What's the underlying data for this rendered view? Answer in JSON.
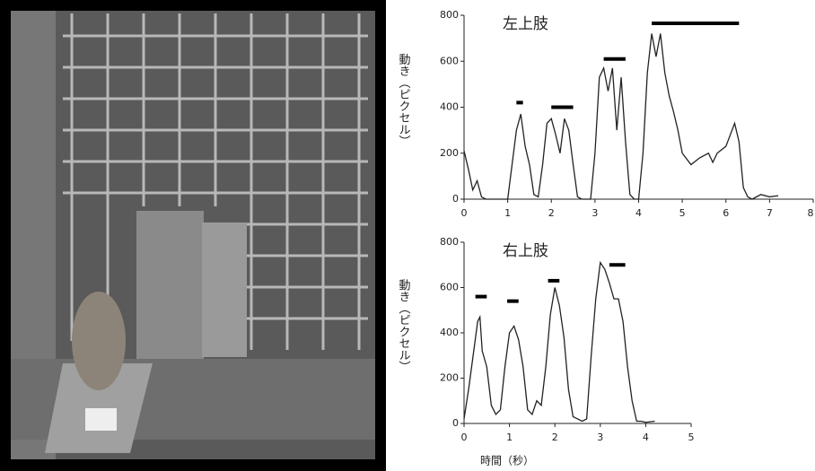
{
  "chart_data": [
    {
      "type": "line",
      "title": "左上肢",
      "ylabel": "動き（ピクセル）",
      "x": [
        0,
        0.1,
        0.2,
        0.3,
        0.4,
        0.5,
        0.6,
        1.0,
        1.1,
        1.2,
        1.3,
        1.4,
        1.5,
        1.6,
        1.7,
        1.8,
        1.9,
        2.0,
        2.1,
        2.2,
        2.3,
        2.4,
        2.5,
        2.6,
        2.7,
        2.8,
        2.9,
        3.0,
        3.1,
        3.2,
        3.3,
        3.4,
        3.5,
        3.6,
        3.7,
        3.8,
        3.9,
        4.0,
        4.1,
        4.2,
        4.3,
        4.4,
        4.5,
        4.6,
        4.7,
        4.8,
        4.9,
        5.0,
        5.2,
        5.4,
        5.6,
        5.7,
        5.8,
        6.0,
        6.2,
        6.3,
        6.4,
        6.5,
        6.6,
        6.8,
        7.0,
        7.2
      ],
      "series": [
        {
          "color": "#222222",
          "values": [
            210,
            130,
            40,
            80,
            10,
            0,
            0,
            0,
            150,
            300,
            370,
            230,
            150,
            20,
            10,
            150,
            330,
            350,
            280,
            200,
            350,
            300,
            150,
            10,
            0,
            0,
            0,
            200,
            530,
            570,
            470,
            570,
            300,
            530,
            250,
            20,
            0,
            0,
            200,
            550,
            720,
            620,
            720,
            550,
            450,
            380,
            300,
            200,
            150,
            180,
            200,
            160,
            200,
            230,
            330,
            250,
            50,
            10,
            0,
            20,
            10,
            15
          ]
        }
      ],
      "segments": [
        {
          "x": [
            1.2,
            1.35
          ],
          "y": 420
        },
        {
          "x": [
            2.0,
            2.5
          ],
          "y": 400
        },
        {
          "x": [
            3.2,
            3.7
          ],
          "y": 610
        },
        {
          "x": [
            4.3,
            6.3
          ],
          "y": 765
        }
      ],
      "xlim": [
        0,
        8
      ],
      "xticks": [
        0,
        1,
        2,
        3,
        4,
        5,
        6,
        7,
        8
      ],
      "ylim": [
        0,
        800
      ],
      "yticks": [
        0,
        200,
        400,
        600,
        800
      ]
    },
    {
      "type": "line",
      "title": "右上肢",
      "ylabel": "動き（ピクセル）",
      "xlabel": "時間（秒）",
      "x": [
        0,
        0.1,
        0.2,
        0.3,
        0.35,
        0.4,
        0.5,
        0.6,
        0.7,
        0.8,
        0.9,
        1.0,
        1.1,
        1.2,
        1.3,
        1.4,
        1.5,
        1.6,
        1.7,
        1.8,
        1.9,
        2.0,
        2.1,
        2.2,
        2.3,
        2.4,
        2.5,
        2.6,
        2.7,
        2.8,
        2.9,
        3.0,
        3.1,
        3.2,
        3.3,
        3.4,
        3.5,
        3.6,
        3.7,
        3.8,
        3.9,
        4.0,
        4.2
      ],
      "series": [
        {
          "color": "#222222",
          "values": [
            20,
            150,
            300,
            450,
            470,
            320,
            250,
            80,
            40,
            60,
            250,
            400,
            430,
            370,
            250,
            60,
            40,
            100,
            80,
            250,
            480,
            600,
            520,
            380,
            150,
            30,
            20,
            10,
            20,
            300,
            550,
            710,
            680,
            620,
            550,
            550,
            450,
            250,
            100,
            10,
            10,
            5,
            10
          ]
        }
      ],
      "segments": [
        {
          "x": [
            0.25,
            0.5
          ],
          "y": 560
        },
        {
          "x": [
            0.95,
            1.2
          ],
          "y": 540
        },
        {
          "x": [
            1.85,
            2.1
          ],
          "y": 630
        },
        {
          "x": [
            3.2,
            3.55
          ],
          "y": 700
        }
      ],
      "xlim": [
        0,
        5
      ],
      "xticks": [
        0,
        1,
        2,
        3,
        4,
        5
      ],
      "ylim": [
        0,
        800
      ],
      "yticks": [
        0,
        200,
        400,
        600,
        800
      ]
    }
  ]
}
